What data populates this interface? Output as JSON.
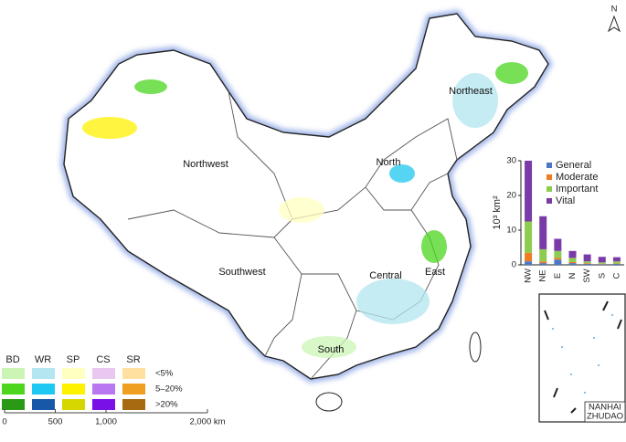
{
  "map": {
    "compass": "N",
    "regions": [
      {
        "name": "Northwest"
      },
      {
        "name": "Northeast"
      },
      {
        "name": "North"
      },
      {
        "name": "Southwest"
      },
      {
        "name": "Central"
      },
      {
        "name": "East"
      },
      {
        "name": "South"
      }
    ],
    "legend": {
      "columns": [
        {
          "name": "BD",
          "colors": [
            "#ccf5b5",
            "#4cd61e",
            "#2a9a16"
          ]
        },
        {
          "name": "WR",
          "colors": [
            "#b3e6ef",
            "#1ec8f0",
            "#1858a8"
          ]
        },
        {
          "name": "SP",
          "colors": [
            "#ffffbf",
            "#fff200",
            "#d6d600"
          ]
        },
        {
          "name": "CS",
          "colors": [
            "#e8c8f0",
            "#b878f0",
            "#7a10e8"
          ]
        },
        {
          "name": "SR",
          "colors": [
            "#ffe0a0",
            "#f0a020",
            "#a86a10"
          ]
        }
      ],
      "rows": [
        "<5%",
        "5–20%",
        ">20%"
      ]
    },
    "scale": {
      "ticks": [
        0,
        500,
        {
          "value": 1000,
          "label": "1,000"
        },
        {
          "value": 2000,
          "label": "2,000 km"
        }
      ]
    },
    "inset_label": [
      "NANHAI",
      "ZHUDAO"
    ]
  },
  "chart_data": {
    "type": "bar",
    "stacked": true,
    "y_label": "10³ km²",
    "categories": [
      "NW",
      "NE",
      "E",
      "N",
      "SW",
      "S",
      "C"
    ],
    "series": [
      {
        "name": "General",
        "color": "#4a78c8",
        "values": [
          1,
          0.5,
          1.5,
          0.5,
          0.3,
          0.2,
          0.3
        ]
      },
      {
        "name": "Moderate",
        "color": "#f07b20",
        "values": [
          2.5,
          0.5,
          0.5,
          0.3,
          0.2,
          0.1,
          0.1
        ]
      },
      {
        "name": "Important",
        "color": "#8ccc50",
        "values": [
          9,
          3.5,
          2,
          1.2,
          0.5,
          0.4,
          0.6
        ]
      },
      {
        "name": "Vital",
        "color": "#7a3aa8",
        "values": [
          17.5,
          9.5,
          3.5,
          2,
          2,
          1.6,
          1.2
        ]
      }
    ],
    "ylim": [
      0,
      30
    ],
    "yticks": [
      0,
      10,
      20,
      30
    ]
  }
}
